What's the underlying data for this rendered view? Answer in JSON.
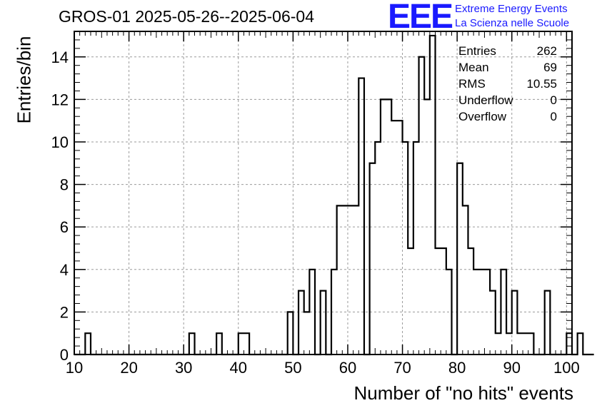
{
  "header": {
    "title": "GROS-01 2025-05-26--2025-06-04",
    "logo_mark": "EEE",
    "logo_line1": "Extreme Energy Events",
    "logo_line2": "La Scienza nelle Scuole"
  },
  "stats": [
    {
      "label": "Entries",
      "value": "262"
    },
    {
      "label": "Mean",
      "value": "69"
    },
    {
      "label": "RMS",
      "value": "10.55"
    },
    {
      "label": "Underflow",
      "value": "0"
    },
    {
      "label": "Overflow",
      "value": "0"
    }
  ],
  "colors": {
    "line": "#000000",
    "grid": "#9a9a9a",
    "logo": "#1a1aff"
  },
  "chart_data": {
    "type": "bar",
    "histogram": true,
    "xlabel": "Number of \"no hits\" events",
    "ylabel": "Entries/bin",
    "xlim": [
      10,
      101
    ],
    "ylim": [
      0,
      15.2
    ],
    "grid": true,
    "x_ticks": [
      10,
      20,
      30,
      40,
      50,
      60,
      70,
      80,
      90,
      100
    ],
    "y_ticks": [
      0,
      2,
      4,
      6,
      8,
      10,
      12,
      14
    ],
    "bin_width": 1,
    "bin_edges_start": 10,
    "values": [
      0,
      0,
      1,
      0,
      0,
      0,
      0,
      0,
      0,
      0,
      0,
      0,
      0,
      0,
      0,
      0,
      0,
      0,
      0,
      0,
      0,
      1,
      0,
      0,
      0,
      0,
      1,
      0,
      0,
      0,
      1,
      1,
      0,
      0,
      0,
      0,
      0,
      0,
      0,
      2,
      0,
      3,
      2,
      4,
      0,
      3,
      0,
      4,
      7,
      7,
      7,
      7,
      13,
      0,
      9,
      10,
      12,
      12,
      11,
      11,
      10,
      5,
      10,
      14,
      12,
      15,
      5,
      5,
      4,
      0,
      9,
      7,
      5,
      4,
      4,
      4,
      3,
      1,
      4,
      1,
      3,
      1,
      1,
      1,
      0,
      0,
      3,
      0,
      0,
      0,
      1,
      0,
      1,
      0,
      0
    ]
  }
}
